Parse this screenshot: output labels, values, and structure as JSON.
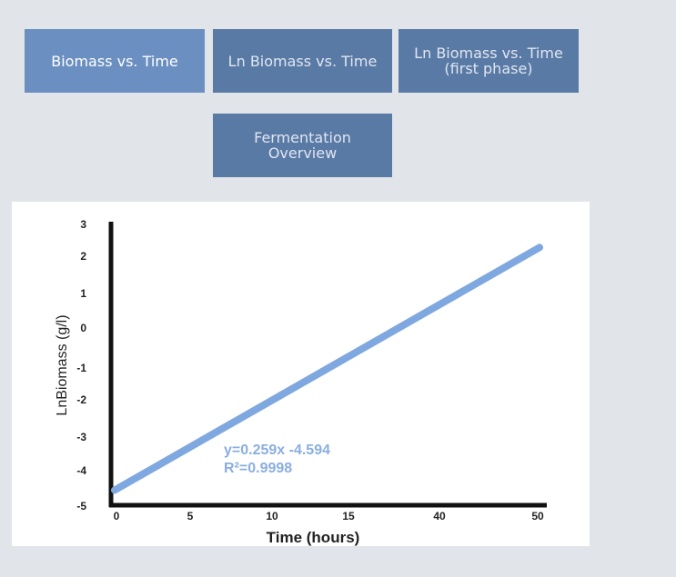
{
  "tabs": [
    {
      "label": "Biomass vs. Time",
      "state": "active"
    },
    {
      "label": "Ln Biomass vs. Time",
      "state": "inactive"
    },
    {
      "label": "Ln Biomass vs. Time\n(first phase)",
      "state": "inactive"
    },
    {
      "label": "Fermentation\nOverview",
      "state": "inactive"
    }
  ],
  "chart_data": {
    "type": "line",
    "xlabel": "Time (hours)",
    "ylabel": "LnBiomass (g/l)",
    "x_ticks": [
      "0",
      "5",
      "10",
      "15",
      "40",
      "50"
    ],
    "y_ticks": [
      "3",
      "2",
      "1",
      "0",
      "-1",
      "-2",
      "-3",
      "-4",
      "-5"
    ],
    "ylim": [
      -5,
      3
    ],
    "grid": false,
    "series": [
      {
        "x": [
          0,
          50
        ],
        "y": [
          -4.55,
          2.3
        ],
        "color": "#80a8e0"
      }
    ],
    "annotations": [
      "y=0.259x -4.594",
      "R²=0.9998"
    ]
  }
}
